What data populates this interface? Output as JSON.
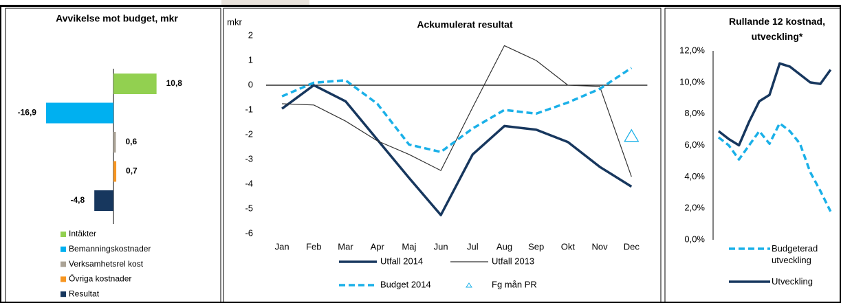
{
  "chart_data": [
    {
      "type": "bar",
      "orientation": "horizontal",
      "title": "Avvikelse mot budget, mkr",
      "categories": [
        "Intäkter",
        "Bemanningskostnader",
        "Verksamhetsrel kost",
        "Övriga kostnader",
        "Resultat"
      ],
      "values": [
        10.8,
        -16.9,
        0.6,
        0.7,
        -4.8
      ],
      "value_labels": [
        "10,8",
        "-16,9",
        "0,6",
        "0,7",
        "-4,8"
      ],
      "colors": [
        "#92d050",
        "#00b0f0",
        "#aba396",
        "#f79621",
        "#17375e"
      ],
      "xlim": [
        -20,
        20
      ],
      "legend": "bottom"
    },
    {
      "type": "line",
      "title": "Ackumulerat resultat",
      "y_label": "mkr",
      "categories": [
        "Jan",
        "Feb",
        "Mar",
        "Apr",
        "Maj",
        "Jun",
        "Jul",
        "Aug",
        "Sep",
        "Okt",
        "Nov",
        "Dec"
      ],
      "series": [
        {
          "name": "Utfall 2014",
          "color": "#17375e",
          "style": "solid-thick",
          "values": [
            -0.95,
            0.0,
            -0.65,
            -2.2,
            -3.75,
            -5.25,
            -2.8,
            -1.65,
            -1.8,
            -2.3,
            -3.3,
            -4.1
          ]
        },
        {
          "name": "Utfall 2013",
          "color": "#333333",
          "style": "solid-thin",
          "values": [
            -0.75,
            -0.8,
            -1.45,
            -2.25,
            -2.8,
            -3.45,
            -0.9,
            1.6,
            1.0,
            0.0,
            -0.05,
            -3.7
          ]
        },
        {
          "name": "Budget 2014",
          "color": "#1ab0e8",
          "style": "dashed",
          "values": [
            -0.45,
            0.1,
            0.2,
            -0.75,
            -2.4,
            -2.7,
            -1.75,
            -1.0,
            -1.15,
            -0.7,
            -0.15,
            0.7
          ]
        },
        {
          "name": "Fg mån PR",
          "color": "#1ab0e8",
          "style": "triangle",
          "values": [
            null,
            null,
            null,
            null,
            null,
            null,
            null,
            null,
            null,
            null,
            null,
            -2.05
          ]
        }
      ],
      "ylim": [
        -6,
        2
      ],
      "yticks": [
        -6,
        -5,
        -4,
        -3,
        -2,
        -1,
        0,
        1,
        2
      ],
      "legend": "bottom"
    },
    {
      "type": "line",
      "title": "Rullande 12 kostnad, utveckling*",
      "categories": [
        null,
        null,
        null,
        null,
        null,
        null,
        null,
        null,
        null,
        null,
        null,
        null
      ],
      "series": [
        {
          "name": "Budgeterad utveckling",
          "color": "#1ab0e8",
          "style": "dashed",
          "values": [
            6.5,
            6.0,
            5.1,
            6.0,
            6.9,
            6.1,
            7.4,
            6.9,
            6.1,
            4.3,
            3.1,
            1.8
          ]
        },
        {
          "name": "Utveckling",
          "color": "#17375e",
          "style": "solid-thick",
          "values": [
            6.9,
            6.4,
            6.0,
            7.5,
            8.8,
            9.2,
            11.2,
            11.0,
            10.5,
            10.0,
            9.9,
            10.8
          ]
        }
      ],
      "ylim": [
        0,
        12
      ],
      "yticks": [
        {
          "value": 0,
          "label": "0,0%"
        },
        {
          "value": 2,
          "label": "2,0%"
        },
        {
          "value": 4,
          "label": "4,0%"
        },
        {
          "value": 6,
          "label": "6,0%"
        },
        {
          "value": 8,
          "label": "8,0%"
        },
        {
          "value": 10,
          "label": "10,0%"
        },
        {
          "value": 12,
          "label": "12,0%"
        }
      ],
      "legend": "bottom"
    }
  ]
}
